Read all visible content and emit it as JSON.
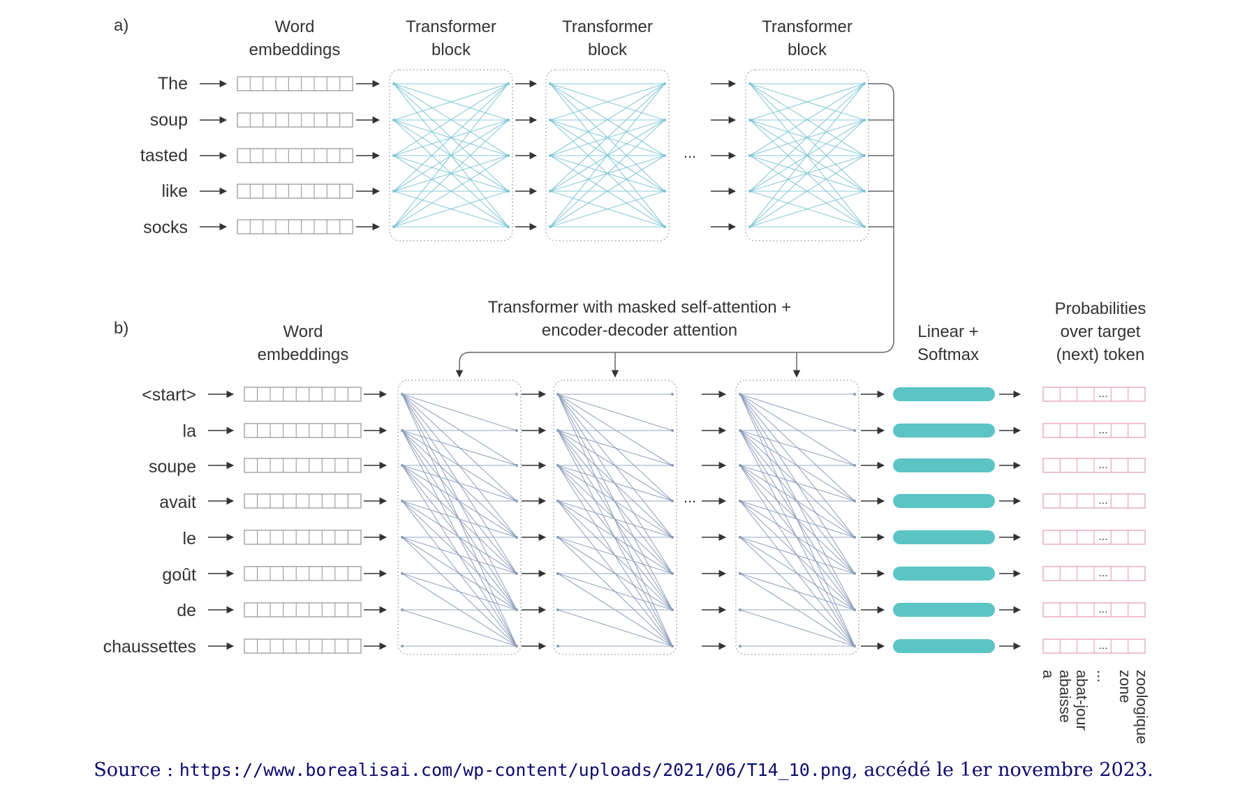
{
  "colors": {
    "text": "#333333",
    "encoder_links": "#7cc4d4",
    "decoder_links": "#8a9bb8",
    "linear_softmax": "#5bc4c4",
    "probabilities": "#e8a0b0",
    "box_border": "#999999",
    "source_text": "#0a0a6e"
  },
  "part_a": {
    "label": "a)",
    "word_embeddings_header": [
      "Word",
      "embeddings"
    ],
    "transformer_block_header": [
      "Transformer",
      "block"
    ],
    "ellipsis": "...",
    "input_words": [
      "The",
      "soup",
      "tasted",
      "like",
      "socks"
    ]
  },
  "part_b": {
    "label": "b)",
    "word_embeddings_header": [
      "Word",
      "embeddings"
    ],
    "decoder_header": [
      "Transformer with masked self-attention +",
      "encoder-decoder attention"
    ],
    "linear_softmax_header": [
      "Linear +",
      "Softmax"
    ],
    "probabilities_header": [
      "Probabilities",
      "over target",
      "(next) token"
    ],
    "ellipsis": "...",
    "input_words": [
      "<start>",
      "la",
      "soupe",
      "avait",
      "le",
      "goût",
      "de",
      "chaussettes"
    ],
    "vocabulary_labels": [
      "a",
      "abaisse",
      "abat-jour",
      "...",
      "zone",
      "zoologique"
    ]
  },
  "source": {
    "prefix": "Source : ",
    "url": "https://www.borealisai.com/wp-content/uploads/2021/06/T14_10.png",
    "suffix": ", accédé le 1er novembre 2023."
  }
}
